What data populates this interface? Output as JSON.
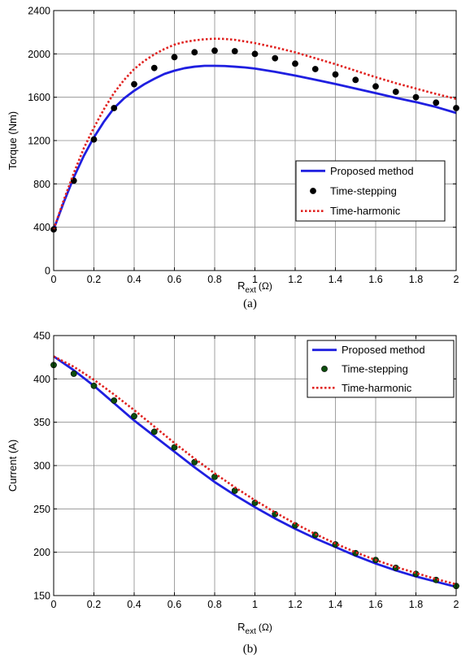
{
  "chart_data": [
    {
      "type": "line",
      "caption": "(a)",
      "xlabel_main": "R",
      "xlabel_sub": "ext",
      "xlabel_unit": "(Ω)",
      "ylabel": "Torque (Nm)",
      "xlim": [
        0,
        2
      ],
      "ylim": [
        0,
        2400
      ],
      "xticks": [
        0,
        0.2,
        0.4,
        0.6,
        0.8,
        1,
        1.2,
        1.4,
        1.6,
        1.8,
        2
      ],
      "xtick_labels": [
        "0",
        "0.2",
        "0.4",
        "0.6",
        "0.8",
        "1",
        "1.2",
        "1.4",
        "1.6",
        "1.8",
        "2"
      ],
      "yticks": [
        0,
        400,
        800,
        1200,
        1600,
        2000,
        2400
      ],
      "ytick_labels": [
        "0",
        "400",
        "800",
        "1200",
        "1600",
        "2000",
        "2400"
      ],
      "grid": true,
      "legend_position": "lower-right",
      "series": [
        {
          "name": "Proposed method",
          "style": "solid",
          "color": "#1f1fe0",
          "x": [
            0,
            0.05,
            0.1,
            0.15,
            0.2,
            0.25,
            0.3,
            0.35,
            0.4,
            0.45,
            0.5,
            0.55,
            0.6,
            0.65,
            0.7,
            0.75,
            0.8,
            0.85,
            0.9,
            0.95,
            1.0,
            1.1,
            1.2,
            1.3,
            1.4,
            1.5,
            1.6,
            1.7,
            1.8,
            1.9,
            2.0
          ],
          "y": [
            380,
            630,
            860,
            1060,
            1230,
            1375,
            1500,
            1590,
            1660,
            1720,
            1770,
            1815,
            1845,
            1868,
            1882,
            1890,
            1890,
            1888,
            1882,
            1875,
            1865,
            1835,
            1800,
            1762,
            1722,
            1680,
            1638,
            1595,
            1555,
            1510,
            1455
          ]
        },
        {
          "name": "Time-stepping",
          "style": "dots",
          "color": "#000000",
          "x": [
            0,
            0.1,
            0.2,
            0.3,
            0.4,
            0.5,
            0.6,
            0.7,
            0.8,
            0.9,
            1.0,
            1.1,
            1.2,
            1.3,
            1.4,
            1.5,
            1.6,
            1.7,
            1.8,
            1.9,
            2.0
          ],
          "y": [
            380,
            830,
            1210,
            1500,
            1720,
            1870,
            1970,
            2015,
            2030,
            2025,
            2000,
            1960,
            1910,
            1860,
            1810,
            1760,
            1700,
            1650,
            1600,
            1550,
            1500
          ]
        },
        {
          "name": "Time-harmonic",
          "style": "dotted",
          "color": "#e0201e",
          "x": [
            0,
            0.05,
            0.1,
            0.15,
            0.2,
            0.25,
            0.3,
            0.35,
            0.4,
            0.45,
            0.5,
            0.55,
            0.6,
            0.65,
            0.7,
            0.75,
            0.8,
            0.85,
            0.9,
            0.95,
            1.0,
            1.1,
            1.2,
            1.3,
            1.4,
            1.5,
            1.6,
            1.7,
            1.8,
            1.9,
            2.0
          ],
          "y": [
            380,
            650,
            900,
            1130,
            1320,
            1490,
            1640,
            1760,
            1860,
            1935,
            1995,
            2045,
            2085,
            2110,
            2125,
            2135,
            2140,
            2138,
            2130,
            2115,
            2100,
            2060,
            2015,
            1960,
            1905,
            1845,
            1785,
            1730,
            1680,
            1630,
            1585
          ]
        }
      ]
    },
    {
      "type": "line",
      "caption": "(b)",
      "xlabel_main": "R",
      "xlabel_sub": "ext",
      "xlabel_unit": "(Ω)",
      "ylabel": "Current (A)",
      "xlim": [
        0,
        2
      ],
      "ylim": [
        150,
        450
      ],
      "xticks": [
        0,
        0.2,
        0.4,
        0.6,
        0.8,
        1,
        1.2,
        1.4,
        1.6,
        1.8,
        2
      ],
      "xtick_labels": [
        "0",
        "0.2",
        "0.4",
        "0.6",
        "0.8",
        "1",
        "1.2",
        "1.4",
        "1.6",
        "1.8",
        "2"
      ],
      "yticks": [
        150,
        200,
        250,
        300,
        350,
        400,
        450
      ],
      "ytick_labels": [
        "150",
        "200",
        "250",
        "300",
        "350",
        "400",
        "450"
      ],
      "grid": true,
      "legend_position": "top-right",
      "series": [
        {
          "name": "Proposed method",
          "style": "solid",
          "color": "#1f1fe0",
          "x": [
            0,
            0.1,
            0.2,
            0.3,
            0.4,
            0.5,
            0.6,
            0.7,
            0.8,
            0.9,
            1.0,
            1.1,
            1.2,
            1.3,
            1.4,
            1.5,
            1.6,
            1.7,
            1.8,
            1.9,
            2.0
          ],
          "y": [
            426,
            410,
            392,
            372,
            352,
            334,
            316,
            298,
            281,
            266,
            252,
            239,
            227,
            216,
            206,
            196,
            187,
            179,
            172,
            166,
            160
          ]
        },
        {
          "name": "Time-stepping",
          "style": "dots",
          "color": "#0d4d0d",
          "x": [
            0,
            0.1,
            0.2,
            0.3,
            0.4,
            0.5,
            0.6,
            0.7,
            0.8,
            0.9,
            1.0,
            1.1,
            1.2,
            1.3,
            1.4,
            1.5,
            1.6,
            1.7,
            1.8,
            1.9,
            2.0
          ],
          "y": [
            416,
            406,
            392,
            375,
            357,
            339,
            321,
            304,
            287,
            271,
            257,
            244,
            231,
            220,
            209,
            199,
            191,
            182,
            175,
            168,
            161
          ]
        },
        {
          "name": "Time-harmonic",
          "style": "dotted",
          "color": "#e0201e",
          "x": [
            0,
            0.1,
            0.2,
            0.3,
            0.4,
            0.5,
            0.6,
            0.7,
            0.8,
            0.9,
            1.0,
            1.1,
            1.2,
            1.3,
            1.4,
            1.5,
            1.6,
            1.7,
            1.8,
            1.9,
            2.0
          ],
          "y": [
            426,
            414,
            399,
            382,
            364,
            345,
            326,
            308,
            291,
            275,
            260,
            246,
            233,
            221,
            210,
            200,
            191,
            183,
            176,
            169,
            163
          ]
        }
      ]
    }
  ]
}
